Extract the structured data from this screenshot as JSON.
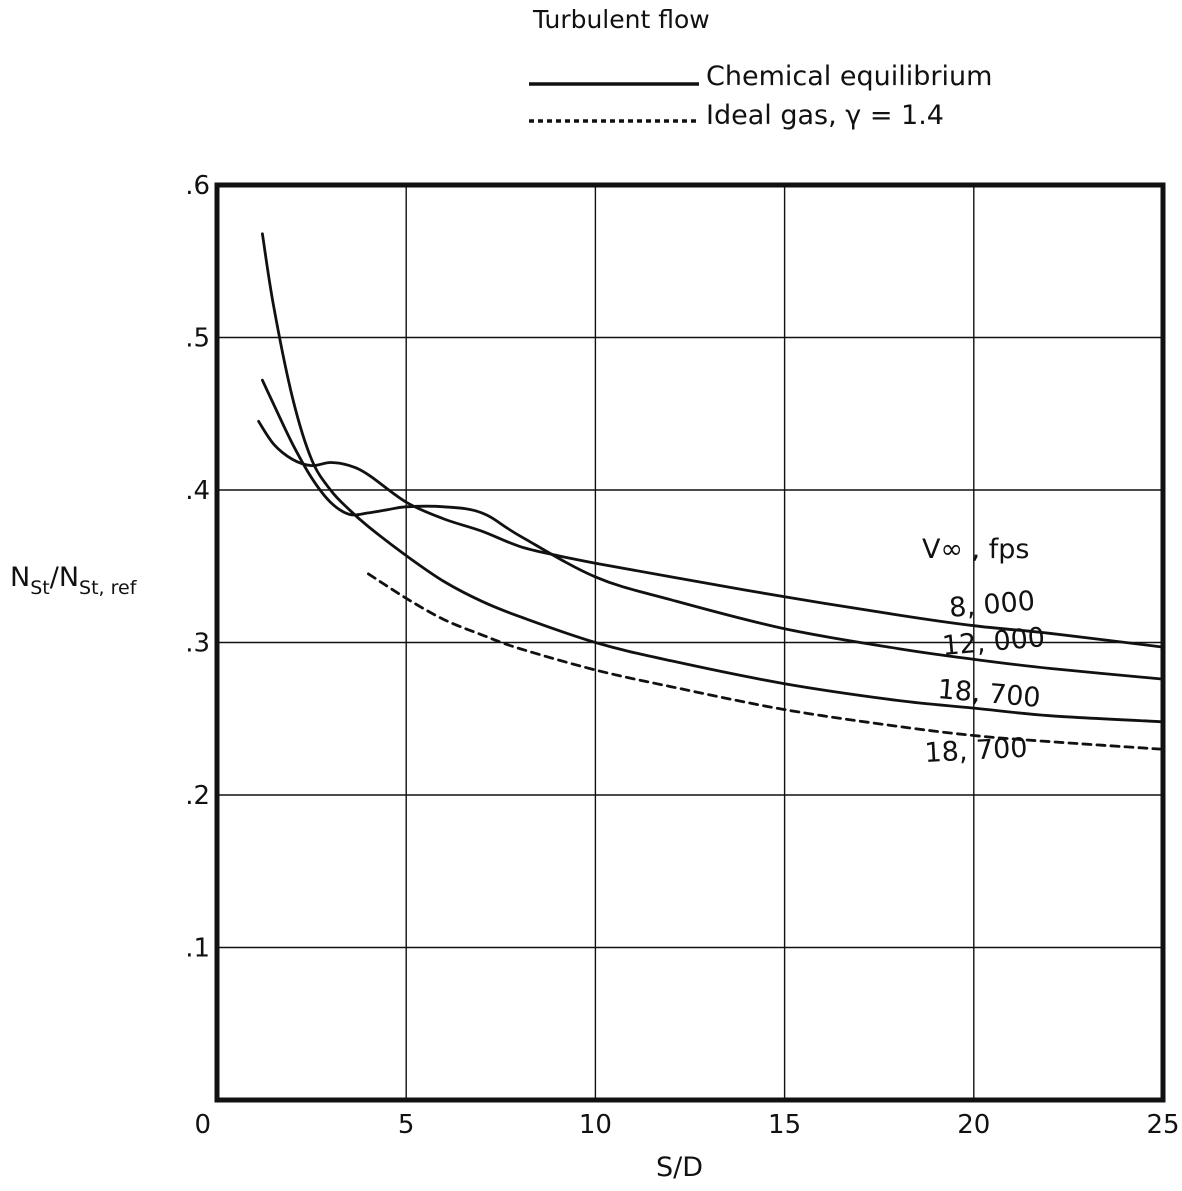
{
  "chart_data": {
    "type": "line",
    "title": "Turbulent flow",
    "xlabel": "S/D",
    "ylabel": "N_St/N_St,ref",
    "ylabel_main": "N",
    "ylabel_sub1": "St",
    "ylabel_sub2": "St, ref",
    "xlim": [
      0,
      25
    ],
    "ylim": [
      0,
      0.6
    ],
    "grid": true,
    "x_ticks": [
      {
        "value": 0,
        "label": "0"
      },
      {
        "value": 5,
        "label": "5"
      },
      {
        "value": 10,
        "label": "10"
      },
      {
        "value": 15,
        "label": "15"
      },
      {
        "value": 20,
        "label": "20"
      },
      {
        "value": 25,
        "label": "25"
      }
    ],
    "y_ticks": [
      {
        "value": 0.1,
        "label": ".1"
      },
      {
        "value": 0.2,
        "label": ".2"
      },
      {
        "value": 0.3,
        "label": ".3"
      },
      {
        "value": 0.4,
        "label": ".4"
      },
      {
        "value": 0.5,
        "label": ".5"
      },
      {
        "value": 0.6,
        "label": ".6"
      }
    ],
    "legend": {
      "placement": "top",
      "entries": [
        {
          "label": "Chemical equilibrium",
          "style": "solid"
        },
        {
          "label": "Ideal gas,  γ = 1.4",
          "style": "dashed"
        }
      ]
    },
    "annotation": "V∞ ,  fps",
    "series": [
      {
        "label": "8, 000",
        "style": "solid",
        "x": [
          1.1,
          1.5,
          2.0,
          2.5,
          3.0,
          3.5,
          4.0,
          5.0,
          6.0,
          7.0,
          8.0,
          9.0,
          10.0,
          12.0,
          15.0,
          18.0,
          20.0,
          22.0,
          25.0
        ],
        "y": [
          0.445,
          0.43,
          0.42,
          0.416,
          0.418,
          0.416,
          0.41,
          0.392,
          0.381,
          0.373,
          0.363,
          0.357,
          0.352,
          0.343,
          0.33,
          0.318,
          0.311,
          0.306,
          0.297
        ]
      },
      {
        "label": "12, 000",
        "style": "solid",
        "x": [
          1.2,
          1.5,
          2.0,
          2.5,
          3.0,
          3.5,
          4.0,
          4.5,
          5.0,
          6.0,
          7.0,
          8.0,
          10.0,
          12.0,
          15.0,
          18.0,
          20.0,
          22.0,
          25.0
        ],
        "y": [
          0.472,
          0.456,
          0.43,
          0.408,
          0.392,
          0.384,
          0.385,
          0.387,
          0.389,
          0.389,
          0.385,
          0.37,
          0.343,
          0.328,
          0.309,
          0.296,
          0.289,
          0.283,
          0.276
        ]
      },
      {
        "label": "18, 700",
        "style": "solid",
        "x": [
          1.2,
          1.5,
          2.0,
          2.5,
          3.0,
          3.5,
          4.0,
          5.0,
          6.0,
          7.0,
          8.0,
          10.0,
          12.0,
          15.0,
          18.0,
          20.0,
          22.0,
          25.0
        ],
        "y": [
          0.568,
          0.52,
          0.46,
          0.42,
          0.4,
          0.387,
          0.376,
          0.357,
          0.34,
          0.327,
          0.317,
          0.3,
          0.288,
          0.273,
          0.262,
          0.257,
          0.252,
          0.248
        ]
      },
      {
        "label": "18, 700",
        "style": "dashed",
        "x": [
          4.0,
          5.0,
          6.0,
          7.0,
          8.0,
          10.0,
          12.0,
          15.0,
          18.0,
          20.0,
          22.0,
          25.0
        ],
        "y": [
          0.345,
          0.329,
          0.315,
          0.305,
          0.296,
          0.282,
          0.271,
          0.256,
          0.245,
          0.239,
          0.235,
          0.23
        ]
      }
    ]
  }
}
